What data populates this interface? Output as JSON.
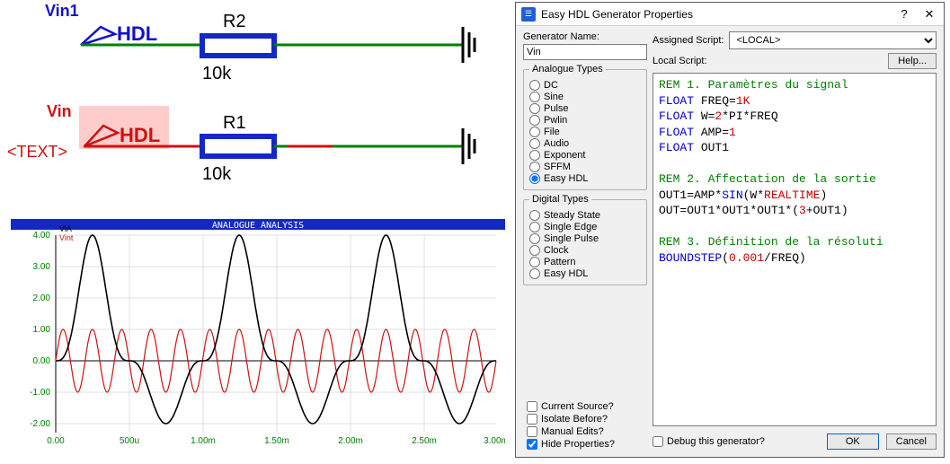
{
  "schematic": {
    "gen1": {
      "label": "Vin1",
      "badge": "HDL",
      "color": "#1010d0"
    },
    "gen2": {
      "label": "Vin",
      "badge": "HDL",
      "sublabel": "<TEXT>",
      "color": "#d01010",
      "highlight": "#ffcccc"
    },
    "r1": {
      "name": "R1",
      "value": "10k"
    },
    "r2": {
      "name": "R2",
      "value": "10k"
    },
    "wire_green": "#008000",
    "wire_red": "#d01010",
    "wire_blue": "#1428c8"
  },
  "graph": {
    "title": "ANALOGUE ANALYSIS",
    "traces": {
      "ViA": "#000000",
      "Vint": "#d01010"
    },
    "trace_labels": [
      "ViA",
      "Vint"
    ],
    "y_ticks": [
      "4.00",
      "3.00",
      "2.00",
      "1.00",
      "0.00",
      "-1.00",
      "-2.00"
    ],
    "x_ticks": [
      "0.00",
      "500u",
      "1.00m",
      "1.50m",
      "2.00m",
      "2.50m",
      "3.00m"
    ],
    "bg": "#ffffff",
    "title_bg": "#1428c8",
    "grid_color": "#b0b0b0"
  },
  "dialog": {
    "title": "Easy HDL Generator Properties",
    "gen_name_label": "Generator Name:",
    "gen_name_value": "Vin",
    "analogue_legend": "Analogue Types",
    "analogue_types": [
      "DC",
      "Sine",
      "Pulse",
      "Pwlin",
      "File",
      "Audio",
      "Exponent",
      "SFFM",
      "Easy HDL"
    ],
    "analogue_selected": "Easy HDL",
    "digital_legend": "Digital Types",
    "digital_types": [
      "Steady State",
      "Single Edge",
      "Single Pulse",
      "Clock",
      "Pattern",
      "Easy HDL"
    ],
    "checks": [
      {
        "label": "Current Source?",
        "checked": false
      },
      {
        "label": "Isolate Before?",
        "checked": false
      },
      {
        "label": "Manual Edits?",
        "checked": false
      },
      {
        "label": "Hide Properties?",
        "checked": true
      }
    ],
    "assigned_label": "Assigned Script:",
    "assigned_value": "<LOCAL>",
    "local_label": "Local Script:",
    "help_label": "Help...",
    "debug_label": "Debug this generator?",
    "ok_label": "OK",
    "cancel_label": "Cancel",
    "code": {
      "l1": "REM 1. Paramètres du signal",
      "l2a": "FLOAT",
      "l2b": " FREQ=",
      "l2c": "1K",
      "l3a": "FLOAT",
      "l3b": " W=",
      "l3c": "2",
      "l3d": "*PI*FREQ",
      "l4a": "FLOAT",
      "l4b": " AMP=",
      "l4c": "1",
      "l5a": "FLOAT",
      "l5b": " OUT1",
      "l7": "REM 2. Affectation de la sortie",
      "l8a": "OUT1=AMP*",
      "l8b": "SIN",
      "l8c": "(W*",
      "l8d": "REALTIME",
      "l8e": ")",
      "l9a": "OUT=OUT1*OUT1*OUT1*(",
      "l9b": "3",
      "l9c": "+OUT1)",
      "l11": "REM 3. Définition de la résoluti",
      "l12a": "BOUNDSTEP",
      "l12b": "(",
      "l12c": "0.001",
      "l12d": "/FREQ)"
    }
  }
}
